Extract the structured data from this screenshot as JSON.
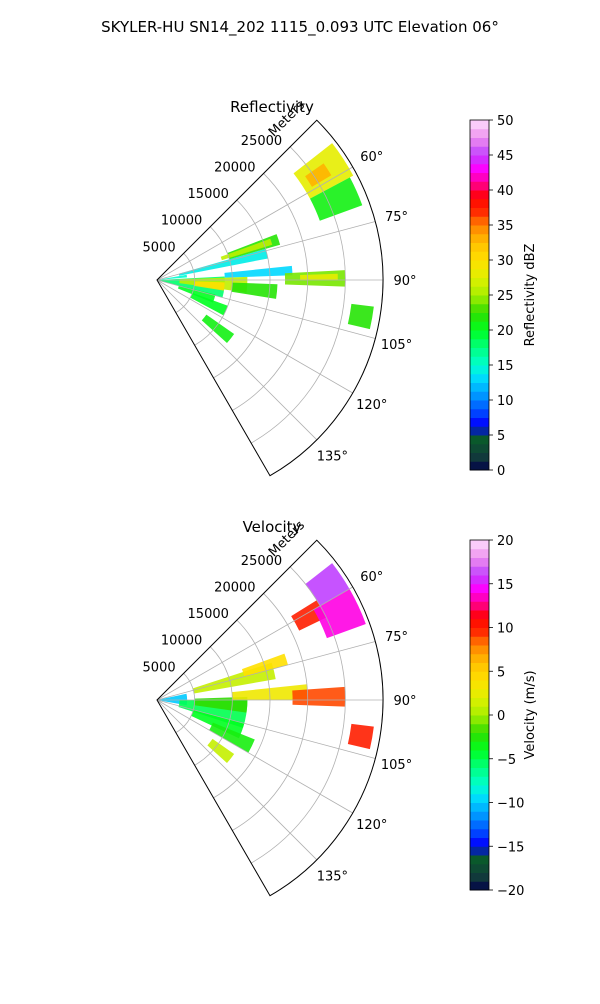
{
  "figure": {
    "suptitle": "SKYLER-HU  SN14_202  1115_0.093 UTC Elevation 06°"
  },
  "chart_data": [
    {
      "type": "heatmap",
      "subtype": "polar-sector",
      "title": "Reflectivity",
      "range_label": "Meters",
      "azimuth_range": [
        45,
        150
      ],
      "radial_range": [
        0,
        30000
      ],
      "radial_ticks": [
        5000,
        10000,
        15000,
        20000,
        25000
      ],
      "radial_tick_labels": [
        "5000",
        "10000",
        "15000",
        "20000",
        "25000"
      ],
      "azimuth_ticks": [
        60,
        75,
        90,
        105,
        120,
        135
      ],
      "azimuth_tick_labels": [
        "60°",
        "75°",
        "90°",
        "105°",
        "120°",
        "135°"
      ],
      "grid": true,
      "colorbar": {
        "label": "Reflectivity dBZ",
        "range": [
          0,
          50
        ],
        "ticks": [
          0,
          5,
          10,
          15,
          20,
          25,
          30,
          35,
          40,
          45,
          50
        ],
        "tick_labels": [
          "0",
          "5",
          "10",
          "15",
          "20",
          "25",
          "30",
          "35",
          "40",
          "45",
          "50"
        ]
      },
      "cells": [
        {
          "az": [
            87,
            105
          ],
          "r": [
            0,
            9000
          ],
          "v": 18
        },
        {
          "az": [
            88,
            98
          ],
          "r": [
            3000,
            12000
          ],
          "v": 26
        },
        {
          "az": [
            92,
            99
          ],
          "r": [
            5000,
            9000
          ],
          "v": 30
        },
        {
          "az": [
            80,
            85
          ],
          "r": [
            0,
            4000
          ],
          "v": 15
        },
        {
          "az": [
            104,
            112
          ],
          "r": [
            3000,
            8000
          ],
          "v": 20
        },
        {
          "az": [
            110,
            118
          ],
          "r": [
            5000,
            10000
          ],
          "v": 20
        },
        {
          "az": [
            125,
            132
          ],
          "r": [
            8000,
            12500
          ],
          "v": 21
        },
        {
          "az": [
            74,
            79
          ],
          "r": [
            3000,
            15000
          ],
          "v": 14
        },
        {
          "az": [
            69,
            74
          ],
          "r": [
            10000,
            17000
          ],
          "v": 22
        },
        {
          "az": [
            70,
            73
          ],
          "r": [
            9000,
            16000
          ],
          "v": 26
        },
        {
          "az": [
            84,
            88
          ],
          "r": [
            9000,
            18000
          ],
          "v": 13
        },
        {
          "az": [
            87,
            92
          ],
          "r": [
            17000,
            25000
          ],
          "v": 24
        },
        {
          "az": [
            88,
            90
          ],
          "r": [
            19000,
            24000
          ],
          "v": 28
        },
        {
          "az": [
            92,
            99
          ],
          "r": [
            10000,
            16000
          ],
          "v": 22
        },
        {
          "az": [
            97,
            103
          ],
          "r": [
            26000,
            29000
          ],
          "v": 22
        },
        {
          "az": [
            52,
            62
          ],
          "r": [
            23000,
            29500
          ],
          "v": 28
        },
        {
          "az": [
            55,
            59
          ],
          "r": [
            24000,
            27000
          ],
          "v": 33
        },
        {
          "az": [
            62,
            70
          ],
          "r": [
            23000,
            29000
          ],
          "v": 21
        }
      ]
    },
    {
      "type": "heatmap",
      "subtype": "polar-sector",
      "title": "Velocity",
      "range_label": "Meters",
      "azimuth_range": [
        45,
        150
      ],
      "radial_range": [
        0,
        30000
      ],
      "radial_ticks": [
        5000,
        10000,
        15000,
        20000,
        25000
      ],
      "radial_tick_labels": [
        "5000",
        "10000",
        "15000",
        "20000",
        "25000"
      ],
      "azimuth_ticks": [
        60,
        75,
        90,
        105,
        120,
        135
      ],
      "azimuth_tick_labels": [
        "60°",
        "75°",
        "90°",
        "105°",
        "120°",
        "135°"
      ],
      "grid": true,
      "colorbar": {
        "label": "Velocity (m/s)",
        "range": [
          -20,
          20
        ],
        "ticks": [
          -20,
          -15,
          -10,
          -5,
          0,
          5,
          10,
          15,
          20
        ],
        "tick_labels": [
          "−20",
          "−15",
          "−10",
          "−5",
          "0",
          "5",
          "10",
          "15",
          "20"
        ]
      },
      "cells": [
        {
          "az": [
            78,
            100
          ],
          "r": [
            0,
            4000
          ],
          "v": -10
        },
        {
          "az": [
            90,
            108
          ],
          "r": [
            3000,
            12000
          ],
          "v": -5
        },
        {
          "az": [
            88,
            98
          ],
          "r": [
            5000,
            12000
          ],
          "v": -2
        },
        {
          "az": [
            105,
            115
          ],
          "r": [
            5000,
            12000
          ],
          "v": -4
        },
        {
          "az": [
            112,
            120
          ],
          "r": [
            8000,
            14000
          ],
          "v": -3
        },
        {
          "az": [
            125,
            132
          ],
          "r": [
            9000,
            12500
          ],
          "v": 1
        },
        {
          "az": [
            72,
            80
          ],
          "r": [
            5000,
            16000
          ],
          "v": 1
        },
        {
          "az": [
            70,
            75
          ],
          "r": [
            12000,
            18000
          ],
          "v": 4
        },
        {
          "az": [
            84,
            90
          ],
          "r": [
            10000,
            20000
          ],
          "v": 3
        },
        {
          "az": [
            86,
            92
          ],
          "r": [
            18000,
            25000
          ],
          "v": 9
        },
        {
          "az": [
            97,
            103
          ],
          "r": [
            26000,
            29000
          ],
          "v": 10
        },
        {
          "az": [
            58,
            64
          ],
          "r": [
            21000,
            25000
          ],
          "v": 10
        },
        {
          "az": [
            52,
            60
          ],
          "r": [
            25000,
            29500
          ],
          "v": 16
        },
        {
          "az": [
            60,
            70
          ],
          "r": [
            24000,
            29500
          ],
          "v": 14
        }
      ]
    }
  ]
}
